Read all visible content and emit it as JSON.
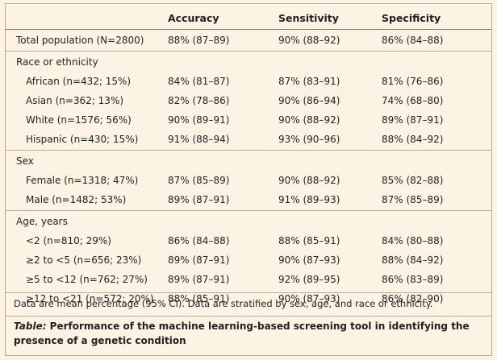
{
  "table": {
    "headers": [
      "",
      "Accuracy",
      "Sensitivity",
      "Specificity"
    ],
    "rows": [
      {
        "type": "data",
        "indent": false,
        "cells": [
          "Total population (N=2800)",
          "88% (87–89)",
          "90% (88–92)",
          "86% (84–88)"
        ]
      },
      {
        "type": "group",
        "label": "Race or ethnicity"
      },
      {
        "type": "data",
        "indent": true,
        "cells": [
          "African (n=432; 15%)",
          "84% (81–87)",
          "87% (83–91)",
          "81% (76–86)"
        ]
      },
      {
        "type": "data",
        "indent": true,
        "cells": [
          "Asian (n=362; 13%)",
          "82% (78–86)",
          "90% (86–94)",
          "74% (68–80)"
        ]
      },
      {
        "type": "data",
        "indent": true,
        "cells": [
          "White (n=1576; 56%)",
          "90% (89–91)",
          "90% (88–92)",
          "89% (87–91)"
        ]
      },
      {
        "type": "data",
        "indent": true,
        "cells": [
          "Hispanic (n=430; 15%)",
          "91% (88–94)",
          "93% (90–96)",
          "88% (84–92)"
        ]
      },
      {
        "type": "group",
        "label": "Sex"
      },
      {
        "type": "data",
        "indent": true,
        "cells": [
          "Female (n=1318; 47%)",
          "87% (85–89)",
          "90% (88–92)",
          "85% (82–88)"
        ]
      },
      {
        "type": "data",
        "indent": true,
        "cells": [
          "Male (n=1482; 53%)",
          "89% (87–91)",
          "91% (89–93)",
          "87% (85–89)"
        ]
      },
      {
        "type": "group",
        "label": "Age, years"
      },
      {
        "type": "data",
        "indent": true,
        "cells": [
          "<2 (n=810; 29%)",
          "86% (84–88)",
          "88% (85–91)",
          "84% (80–88)"
        ]
      },
      {
        "type": "data",
        "indent": true,
        "cells": [
          "≥2 to <5 (n=656; 23%)",
          "89% (87–91)",
          "90% (87–93)",
          "88% (84–92)"
        ]
      },
      {
        "type": "data",
        "indent": true,
        "cells": [
          "≥5 to <12 (n=762; 27%)",
          "89% (87–91)",
          "92% (89–95)",
          "86% (83–89)"
        ]
      },
      {
        "type": "data",
        "indent": true,
        "cells": [
          "≥12 to <21 (n=572; 20%)",
          "88% (85–91)",
          "90% (87–93)",
          "86% (82–90)"
        ]
      }
    ]
  },
  "footnote": "Data are mean percentage (95% CI). Data are stratified by sex, age, and race or ethnicity.",
  "caption": {
    "label": "Table:",
    "text": " Performance of the machine learning-based screening tool in identifying the presence of a genetic condition"
  },
  "colors": {
    "background": "#fdf3e4",
    "rule": "#b8aa96",
    "text": "#231f20"
  }
}
